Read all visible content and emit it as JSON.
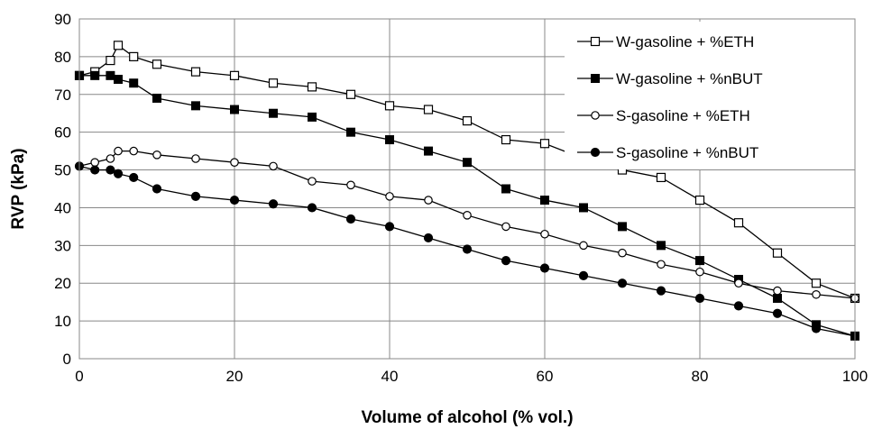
{
  "chart_data": {
    "type": "line",
    "xlabel": "Volume of alcohol (% vol.)",
    "ylabel": "RVP (kPa)",
    "xlim": [
      0,
      100
    ],
    "ylim": [
      0,
      90
    ],
    "xticks": [
      0,
      20,
      40,
      60,
      80,
      100
    ],
    "yticks": [
      0,
      10,
      20,
      30,
      40,
      50,
      60,
      70,
      80,
      90
    ],
    "grid": true,
    "legend_position": "top-right",
    "series": [
      {
        "name": "W-gasoline + %ETH",
        "marker": "open-square",
        "color": "#000000",
        "x": [
          0,
          2,
          4,
          5,
          7,
          10,
          15,
          20,
          25,
          30,
          35,
          40,
          45,
          50,
          55,
          60,
          65,
          70,
          75,
          80,
          85,
          90,
          95,
          100
        ],
        "y": [
          75,
          76,
          79,
          83,
          80,
          78,
          76,
          75,
          73,
          72,
          70,
          67,
          66,
          63,
          58,
          57,
          53,
          50,
          48,
          42,
          36,
          28,
          20,
          16
        ]
      },
      {
        "name": "W-gasoline + %nBUT",
        "marker": "filled-square",
        "color": "#000000",
        "x": [
          0,
          2,
          4,
          5,
          7,
          10,
          15,
          20,
          25,
          30,
          35,
          40,
          45,
          50,
          55,
          60,
          65,
          70,
          75,
          80,
          85,
          90,
          95,
          100
        ],
        "y": [
          75,
          75,
          75,
          74,
          73,
          69,
          67,
          66,
          65,
          64,
          60,
          58,
          55,
          52,
          45,
          42,
          40,
          35,
          30,
          26,
          21,
          16,
          9,
          6
        ]
      },
      {
        "name": "S-gasoline + %ETH",
        "marker": "open-circle",
        "color": "#000000",
        "x": [
          0,
          2,
          4,
          5,
          7,
          10,
          15,
          20,
          25,
          30,
          35,
          40,
          45,
          50,
          55,
          60,
          65,
          70,
          75,
          80,
          85,
          90,
          95,
          100
        ],
        "y": [
          51,
          52,
          53,
          55,
          55,
          54,
          53,
          52,
          51,
          47,
          46,
          43,
          42,
          38,
          35,
          33,
          30,
          28,
          25,
          23,
          20,
          18,
          17,
          16
        ]
      },
      {
        "name": "S-gasoline + %nBUT",
        "marker": "filled-circle",
        "color": "#000000",
        "x": [
          0,
          2,
          4,
          5,
          7,
          10,
          15,
          20,
          25,
          30,
          35,
          40,
          45,
          50,
          55,
          60,
          65,
          70,
          75,
          80,
          85,
          90,
          95,
          100
        ],
        "y": [
          51,
          50,
          50,
          49,
          48,
          45,
          43,
          42,
          41,
          40,
          37,
          35,
          32,
          29,
          26,
          24,
          22,
          20,
          18,
          16,
          14,
          12,
          8,
          6
        ]
      }
    ]
  }
}
